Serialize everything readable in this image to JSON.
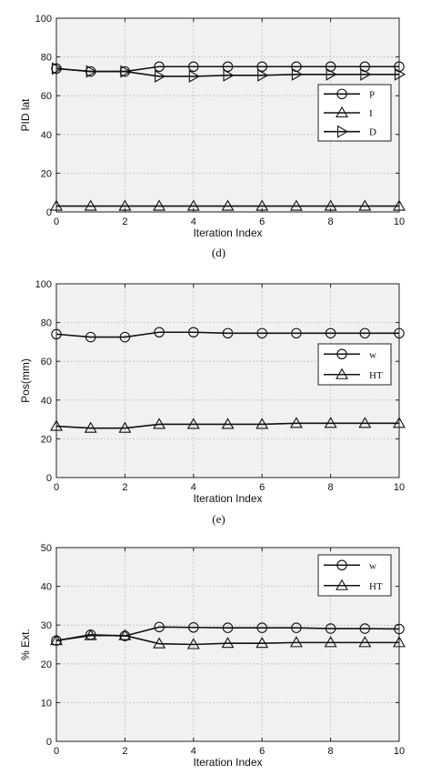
{
  "chart_data": [
    {
      "type": "line",
      "caption": "(d)",
      "xlabel": "Iteration Index",
      "ylabel": "PID lat",
      "xlim": [
        0,
        10
      ],
      "ylim": [
        0,
        100
      ],
      "xticks": [
        "0",
        "2",
        "4",
        "6",
        "8",
        "10"
      ],
      "yticks": [
        "0",
        "20",
        "40",
        "60",
        "80",
        "100"
      ],
      "grid": true,
      "legend_position": "upper-right",
      "x": [
        0,
        1,
        2,
        3,
        4,
        5,
        6,
        7,
        8,
        9,
        10
      ],
      "series": [
        {
          "name": "P",
          "marker": "circle",
          "values": [
            74,
            72.5,
            72.5,
            75,
            75,
            75,
            75,
            75,
            75,
            75,
            75
          ]
        },
        {
          "name": "I",
          "marker": "triangle-up",
          "values": [
            3,
            3,
            3,
            3,
            3,
            3,
            3,
            3,
            3,
            3,
            3
          ]
        },
        {
          "name": "D",
          "marker": "triangle-right",
          "values": [
            74,
            72.5,
            72.5,
            70,
            70,
            70.5,
            70.5,
            71,
            71,
            71,
            71
          ]
        }
      ]
    },
    {
      "type": "line",
      "caption": "(e)",
      "xlabel": "Iteration Index",
      "ylabel": "Pos(mm)",
      "xlim": [
        0,
        10
      ],
      "ylim": [
        0,
        100
      ],
      "xticks": [
        "0",
        "2",
        "4",
        "6",
        "8",
        "10"
      ],
      "yticks": [
        "0",
        "20",
        "40",
        "60",
        "80",
        "100"
      ],
      "grid": true,
      "legend_position": "right",
      "x": [
        0,
        1,
        2,
        3,
        4,
        5,
        6,
        7,
        8,
        9,
        10
      ],
      "series": [
        {
          "name": "w",
          "marker": "circle",
          "values": [
            74,
            72.5,
            72.5,
            75,
            75,
            74.5,
            74.5,
            74.5,
            74.5,
            74.5,
            74.5
          ]
        },
        {
          "name": "HT",
          "marker": "triangle-up",
          "values": [
            26.5,
            25.5,
            25.5,
            27.5,
            27.5,
            27.5,
            27.5,
            28,
            28,
            28,
            28
          ]
        }
      ]
    },
    {
      "type": "line",
      "caption": "",
      "xlabel": "Iteration Index",
      "ylabel": "% Ext.",
      "xlim": [
        0,
        10
      ],
      "ylim": [
        0,
        50
      ],
      "xticks": [
        "0",
        "2",
        "4",
        "6",
        "8",
        "10"
      ],
      "yticks": [
        "0",
        "10",
        "20",
        "30",
        "40",
        "50"
      ],
      "grid": true,
      "legend_position": "upper-right",
      "x": [
        0,
        1,
        2,
        3,
        4,
        5,
        6,
        7,
        8,
        9,
        10
      ],
      "series": [
        {
          "name": "w",
          "marker": "circle",
          "values": [
            26,
            27.5,
            27.2,
            29.5,
            29.4,
            29.3,
            29.3,
            29.3,
            29.1,
            29.1,
            29.0
          ]
        },
        {
          "name": "HT",
          "marker": "triangle-up",
          "values": [
            26,
            27.3,
            27.3,
            25.2,
            25.0,
            25.3,
            25.3,
            25.5,
            25.5,
            25.5,
            25.5
          ]
        }
      ]
    }
  ]
}
